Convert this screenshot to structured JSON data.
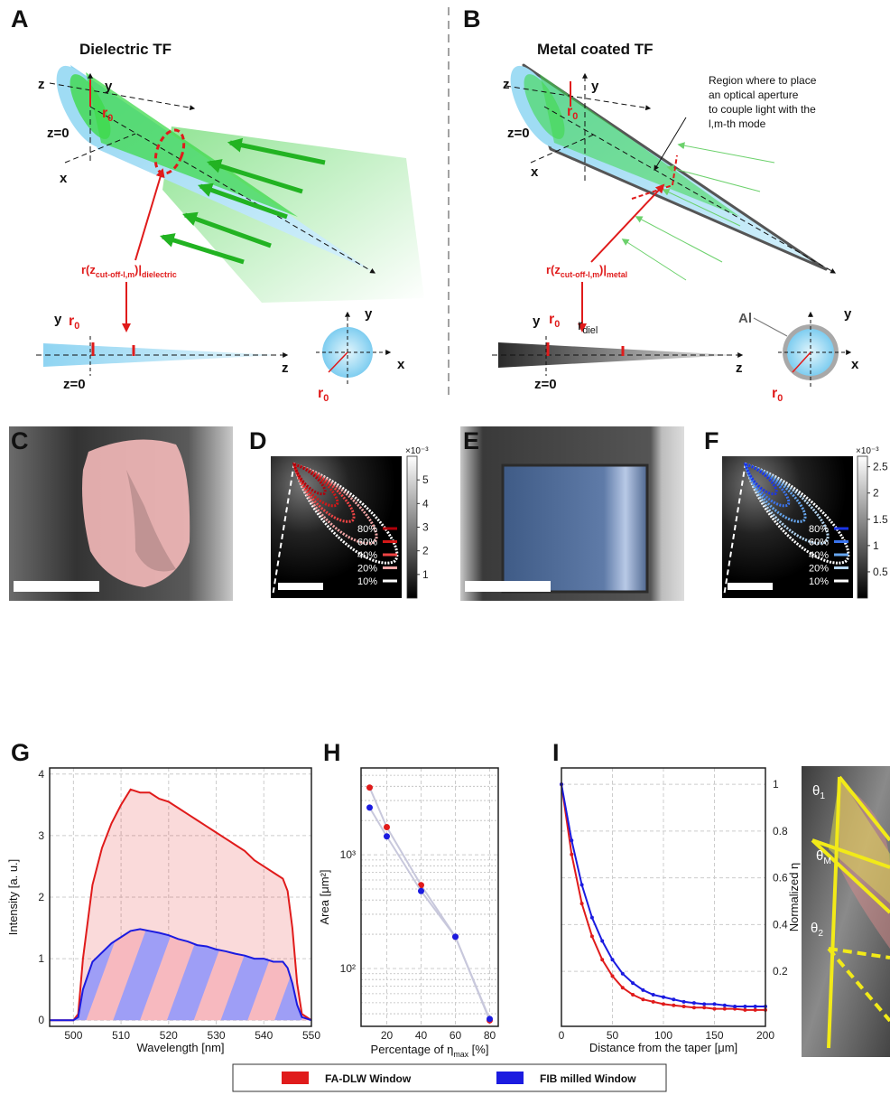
{
  "figure": {
    "panel_labels": [
      "A",
      "B",
      "C",
      "D",
      "E",
      "F",
      "G",
      "H",
      "I"
    ],
    "diagram_a": {
      "title": "Dielectric TF",
      "axis_labels": [
        "z",
        "y",
        "x",
        "z=0",
        "y",
        "z",
        "z=0",
        "y",
        "x"
      ],
      "r0_labels": [
        [
          "r",
          "0"
        ],
        [
          "r",
          "0"
        ],
        [
          "r",
          "0"
        ]
      ],
      "cutoff_label": [
        "r(z",
        "cut-off-l,m",
        ")|",
        "dielectric"
      ]
    },
    "diagram_b": {
      "title": "Metal coated TF",
      "axis_labels": [
        "z",
        "y",
        "z=0",
        "x",
        "y",
        "z",
        "z=0",
        "y",
        "x"
      ],
      "r0_labels": [
        [
          "r",
          "0"
        ],
        [
          "r",
          "0"
        ],
        [
          "r",
          "0"
        ]
      ],
      "cutoff_label": [
        "r(z",
        "cut-off-l,m",
        ")|",
        "metal"
      ],
      "r_diel": [
        "r",
        "diel"
      ],
      "coating": "Al",
      "annotation": [
        "Region where to place",
        "an optical aperture",
        "to couple light with the",
        "l,m-th mode"
      ]
    },
    "colorbar_d": {
      "exponent": "×10⁻³",
      "lim": [
        0,
        6
      ],
      "ticks": [
        1,
        2,
        3,
        4,
        5
      ]
    },
    "colorbar_f": {
      "exponent": "×10⁻³",
      "lim": [
        0,
        2.7
      ],
      "ticks": [
        0.5,
        1,
        1.5,
        2,
        2.5
      ]
    },
    "contour_legend_d": {
      "labels": [
        "80%",
        "60%",
        "40%",
        "20%",
        "10%"
      ],
      "colors": [
        "#b0000a",
        "#d41818",
        "#ee4444",
        "#f4a6a6",
        "#ffffff"
      ]
    },
    "contour_legend_f": {
      "labels": [
        "80%",
        "60%",
        "40%",
        "20%",
        "10%"
      ],
      "colors": [
        "#1a35e8",
        "#3a74ee",
        "#66a6ef",
        "#b5d6f2",
        "#ffffff"
      ]
    },
    "angle_labels": [
      [
        "θ",
        "1"
      ],
      [
        "θ",
        "M"
      ],
      [
        "θ",
        "2"
      ]
    ]
  },
  "chart_data": [
    {
      "type": "line",
      "area": true,
      "xlabel": "Wavelength [nm]",
      "ylabel": "Intensity [a. u.]",
      "x": [
        495,
        500,
        501,
        502,
        504,
        506,
        508,
        510,
        512,
        514,
        516,
        518,
        520,
        522,
        524,
        526,
        528,
        530,
        532,
        534,
        536,
        538,
        540,
        542,
        544,
        545,
        546,
        547,
        548,
        550
      ],
      "series": [
        {
          "name": "FA-DLW Window",
          "color": "#e01b1b",
          "values": [
            0,
            0,
            0.1,
            1.0,
            2.2,
            2.8,
            3.2,
            3.5,
            3.75,
            3.7,
            3.7,
            3.6,
            3.55,
            3.45,
            3.35,
            3.25,
            3.15,
            3.05,
            2.95,
            2.85,
            2.75,
            2.6,
            2.5,
            2.4,
            2.3,
            2.1,
            1.5,
            0.6,
            0.1,
            0
          ]
        },
        {
          "name": "FIB milled Window",
          "color": "#1b1be0",
          "values": [
            0,
            0,
            0.05,
            0.5,
            0.95,
            1.1,
            1.25,
            1.35,
            1.45,
            1.48,
            1.45,
            1.42,
            1.38,
            1.32,
            1.28,
            1.22,
            1.2,
            1.15,
            1.12,
            1.08,
            1.05,
            1.0,
            1.0,
            0.95,
            0.95,
            0.85,
            0.6,
            0.25,
            0.05,
            0
          ]
        }
      ],
      "xlim": [
        495,
        550
      ],
      "xticks": [
        500,
        510,
        520,
        530,
        540,
        550
      ],
      "ylim": [
        -0.1,
        4.1
      ],
      "yticks": [
        0,
        1,
        2,
        3,
        4
      ],
      "grid": true
    },
    {
      "type": "scatter",
      "trend_line": true,
      "log_y": true,
      "xlabel": [
        "Percentage of η",
        "max",
        " [%]"
      ],
      "ylabel": "Area [μm²]",
      "x": [
        10,
        20,
        40,
        60,
        80
      ],
      "series": [
        {
          "color": "#e01b1b",
          "values": [
            3900,
            1750,
            540,
            190,
            35
          ]
        },
        {
          "color": "#1b1be0",
          "values": [
            2600,
            1450,
            480,
            190,
            36
          ]
        }
      ],
      "xlim": [
        5,
        85
      ],
      "xticks": [
        20,
        40,
        60,
        80
      ],
      "ylim": [
        31,
        5800
      ],
      "yticks": [
        {
          "value": 100,
          "label": "10²"
        },
        {
          "value": 1000,
          "label": "10³"
        }
      ],
      "minor_yticks": [
        40,
        50,
        60,
        70,
        80,
        90,
        200,
        300,
        400,
        500,
        600,
        700,
        800,
        900,
        2000,
        3000,
        4000,
        5000
      ],
      "grid": true
    },
    {
      "type": "line",
      "markers": true,
      "y_axis_side": "right",
      "xlabel": "Distance from the taper [μm]",
      "ylabel": "Normalized η",
      "x": [
        0,
        10,
        20,
        30,
        40,
        50,
        60,
        70,
        80,
        90,
        100,
        110,
        120,
        130,
        140,
        150,
        160,
        170,
        180,
        190,
        200
      ],
      "series": [
        {
          "color": "#e01b1b",
          "values": [
            1,
            0.7,
            0.49,
            0.35,
            0.25,
            0.18,
            0.13,
            0.1,
            0.08,
            0.07,
            0.06,
            0.055,
            0.05,
            0.045,
            0.045,
            0.04,
            0.04,
            0.04,
            0.035,
            0.035,
            0.035
          ]
        },
        {
          "color": "#1b1be0",
          "values": [
            1,
            0.76,
            0.57,
            0.43,
            0.33,
            0.25,
            0.19,
            0.15,
            0.12,
            0.1,
            0.09,
            0.08,
            0.07,
            0.065,
            0.06,
            0.06,
            0.055,
            0.05,
            0.05,
            0.05,
            0.05
          ]
        }
      ],
      "xlim": [
        0,
        200
      ],
      "xticks": [
        0,
        50,
        100,
        150,
        200
      ],
      "ylim": [
        -0.035,
        1.07
      ],
      "yticks": [
        0.2,
        0.4,
        0.6,
        0.8,
        1
      ],
      "grid": true
    }
  ]
}
